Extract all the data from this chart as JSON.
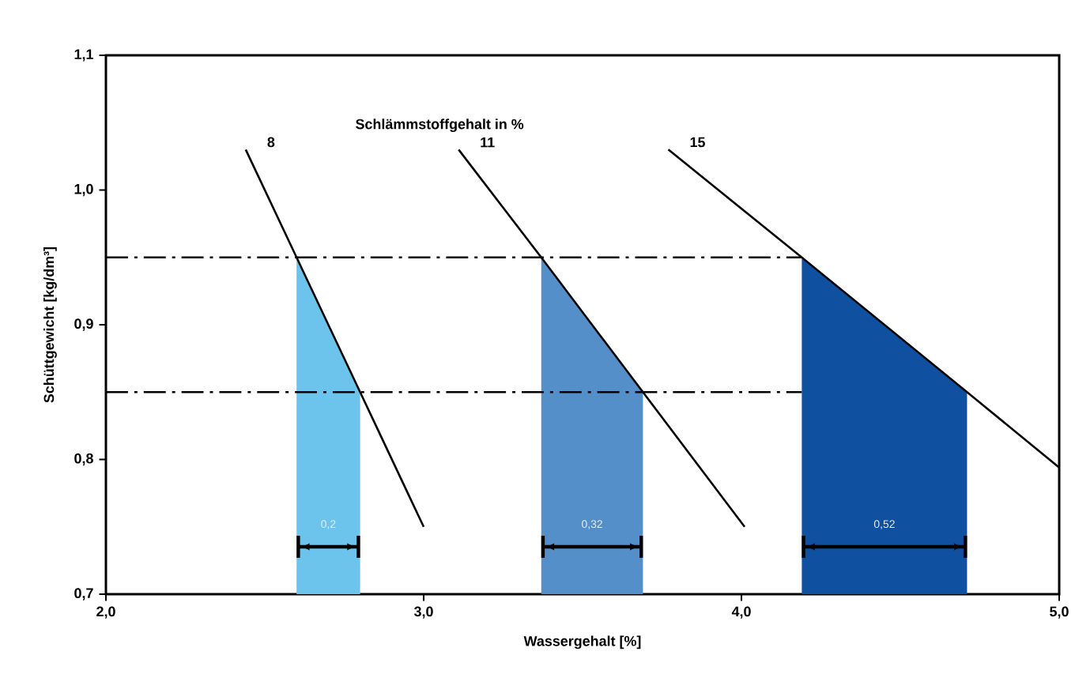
{
  "chart_data": {
    "type": "line",
    "xlabel": "Wassergehalt [%]",
    "ylabel": "Schüttgewicht [kg/dm³]",
    "xlim": [
      2.0,
      5.0
    ],
    "ylim": [
      0.7,
      1.1
    ],
    "xticks": [
      {
        "value": 2.0,
        "label": "2,0"
      },
      {
        "value": 3.0,
        "label": "3,0"
      },
      {
        "value": 4.0,
        "label": "4,0"
      },
      {
        "value": 5.0,
        "label": "5,0"
      }
    ],
    "yticks": [
      {
        "value": 0.7,
        "label": "0,7"
      },
      {
        "value": 0.8,
        "label": "0,8"
      },
      {
        "value": 0.9,
        "label": "0,9"
      },
      {
        "value": 1.0,
        "label": "1,0"
      },
      {
        "value": 1.1,
        "label": "1,1"
      }
    ],
    "series": [
      {
        "type": "area",
        "color": "#6cc3ec",
        "x": [
          2.6,
          2.8
        ],
        "values": [
          0.95,
          0.85
        ]
      },
      {
        "type": "area",
        "color": "#558fc9",
        "x": [
          3.37,
          3.69
        ],
        "values": [
          0.95,
          0.85
        ]
      },
      {
        "type": "area",
        "color": "#1050a0",
        "x": [
          4.19,
          4.71
        ],
        "values": [
          0.95,
          0.85
        ]
      },
      {
        "color": "#000000",
        "line_style": "dashdot",
        "x": [
          2.0,
          4.19
        ],
        "values": [
          0.95,
          0.95
        ]
      },
      {
        "color": "#000000",
        "line_style": "dashdot",
        "x": [
          2.0,
          4.19
        ],
        "values": [
          0.85,
          0.85
        ]
      },
      {
        "name": "8",
        "color": "#000000",
        "x": [
          2.44,
          2.6,
          2.8,
          3.0
        ],
        "values": [
          1.03,
          0.95,
          0.85,
          0.75
        ]
      },
      {
        "name": "11",
        "color": "#000000",
        "x": [
          3.11,
          3.37,
          3.69,
          4.01
        ],
        "values": [
          1.03,
          0.95,
          0.85,
          0.75
        ]
      },
      {
        "name": "15",
        "color": "#000000",
        "x": [
          3.77,
          4.19,
          4.71,
          5.0
        ],
        "values": [
          1.03,
          0.95,
          0.85,
          0.794
        ]
      }
    ],
    "annotations": [
      "Schlämmstoffgehalt in %",
      "0,2",
      "0,32",
      "0,52"
    ]
  }
}
